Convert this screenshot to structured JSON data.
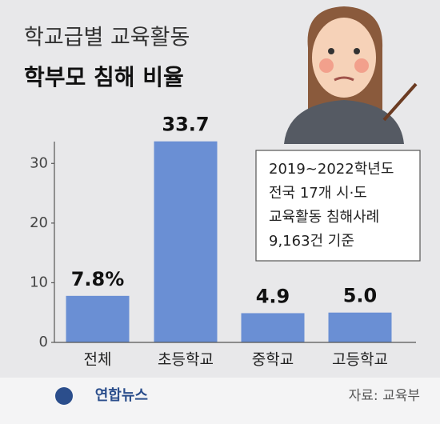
{
  "chart_data": {
    "type": "bar",
    "title": "학교급별 교육활동",
    "subtitle": "학부모 침해 비율",
    "categories": [
      "전체",
      "초등학교",
      "중학교",
      "고등학교"
    ],
    "values": [
      7.8,
      33.7,
      4.9,
      5.0
    ],
    "value_labels": [
      "7.8%",
      "33.7",
      "4.9",
      "5.0"
    ],
    "color": "#6a8fd4",
    "ylim": [
      0,
      35
    ],
    "yticks": [
      0,
      10,
      20,
      30
    ],
    "grid": false,
    "annotation": [
      "2019~2022학년도",
      "전국 17개 시·도",
      "교육활동 침해사례",
      "9,163건 기준"
    ],
    "logo": "연합뉴스",
    "source": "자료: 교육부"
  }
}
